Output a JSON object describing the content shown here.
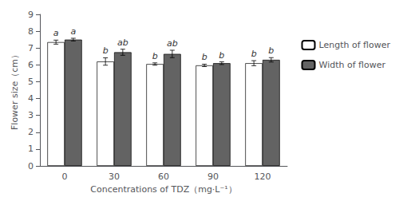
{
  "chart_data": {
    "type": "bar",
    "categories": [
      "0",
      "30",
      "60",
      "90",
      "120"
    ],
    "series": [
      {
        "name": "Length of flower",
        "color": "white",
        "values": [
          7.35,
          6.2,
          6.05,
          5.97,
          6.1
        ],
        "errors": [
          0.12,
          0.22,
          0.07,
          0.07,
          0.15
        ],
        "letters": [
          "a",
          "b",
          "b",
          "b",
          "b"
        ]
      },
      {
        "name": "Width of flower",
        "color": "#636363",
        "values": [
          7.5,
          6.75,
          6.65,
          6.1,
          6.3
        ],
        "errors": [
          0.08,
          0.18,
          0.22,
          0.08,
          0.13
        ],
        "letters": [
          "a",
          "ab",
          "ab",
          "b",
          "b"
        ]
      }
    ],
    "xlabel": "Concentrations of TDZ（mg·L⁻¹）",
    "ylabel": "Flower size（cm）",
    "ylim": [
      0,
      9
    ],
    "yticks": [
      0,
      1,
      2,
      3,
      4,
      5,
      6,
      7,
      8,
      9
    ],
    "grid": false,
    "legend": "right"
  }
}
